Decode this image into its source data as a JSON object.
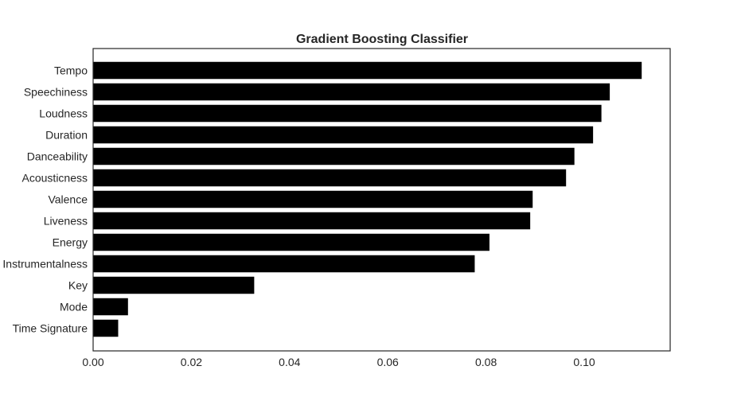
{
  "chart_data": {
    "type": "bar",
    "orientation": "horizontal",
    "title": "Gradient Boosting Classifier",
    "xlabel": "",
    "ylabel": "",
    "categories": [
      "Tempo",
      "Speechiness",
      "Loudness",
      "Duration",
      "Danceability",
      "Acousticness",
      "Valence",
      "Liveness",
      "Energy",
      "Instrumentalness",
      "Key",
      "Mode",
      "Time Signature"
    ],
    "values": [
      0.1117,
      0.1052,
      0.1035,
      0.1018,
      0.098,
      0.0963,
      0.0895,
      0.089,
      0.0807,
      0.0777,
      0.0328,
      0.0071,
      0.0051
    ],
    "xlim": [
      0.0,
      0.1175
    ],
    "xticks": [
      0.0,
      0.02,
      0.04,
      0.06,
      0.08,
      0.1
    ],
    "xtick_labels": [
      "0.00",
      "0.02",
      "0.04",
      "0.06",
      "0.08",
      "0.10"
    ],
    "grid": false,
    "colors": {
      "bar": "#000000",
      "axes": "#262626",
      "text": "#262626",
      "background": "#ffffff"
    }
  }
}
